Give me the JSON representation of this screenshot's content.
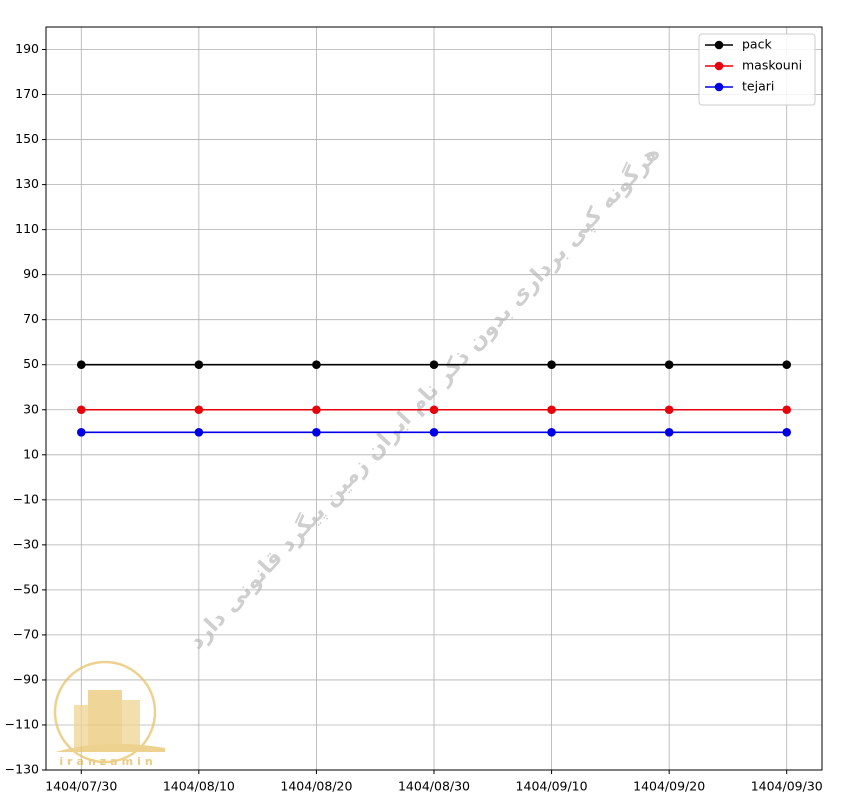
{
  "chart_data": {
    "type": "line",
    "categories": [
      "1404/07/30",
      "1404/08/10",
      "1404/08/20",
      "1404/08/30",
      "1404/09/10",
      "1404/09/20",
      "1404/09/30"
    ],
    "series": [
      {
        "name": "pack",
        "color": "#000000",
        "values": [
          50,
          50,
          50,
          50,
          50,
          50,
          50
        ]
      },
      {
        "name": "maskouni",
        "color": "#e8000b",
        "values": [
          30,
          30,
          30,
          30,
          30,
          30,
          30
        ]
      },
      {
        "name": "tejari",
        "color": "#0000e6",
        "values": [
          20,
          20,
          20,
          20,
          20,
          20,
          20
        ]
      }
    ],
    "ylim": [
      -130,
      200
    ],
    "yticks": [
      {
        "value": -130,
        "label": "−130"
      },
      {
        "value": -110,
        "label": "−110"
      },
      {
        "value": -90,
        "label": "−90"
      },
      {
        "value": -70,
        "label": "−70"
      },
      {
        "value": -50,
        "label": "−50"
      },
      {
        "value": -30,
        "label": "−30"
      },
      {
        "value": -10,
        "label": "−10"
      },
      10,
      30,
      50,
      70,
      90,
      110,
      130,
      150,
      170,
      190
    ],
    "grid": true,
    "legend": "upper right",
    "watermark": "هرگونه کپی برداری بدون ذکر نام ایران زمین پیگرد قانونی دارد",
    "logo_text": "iranzamin"
  }
}
